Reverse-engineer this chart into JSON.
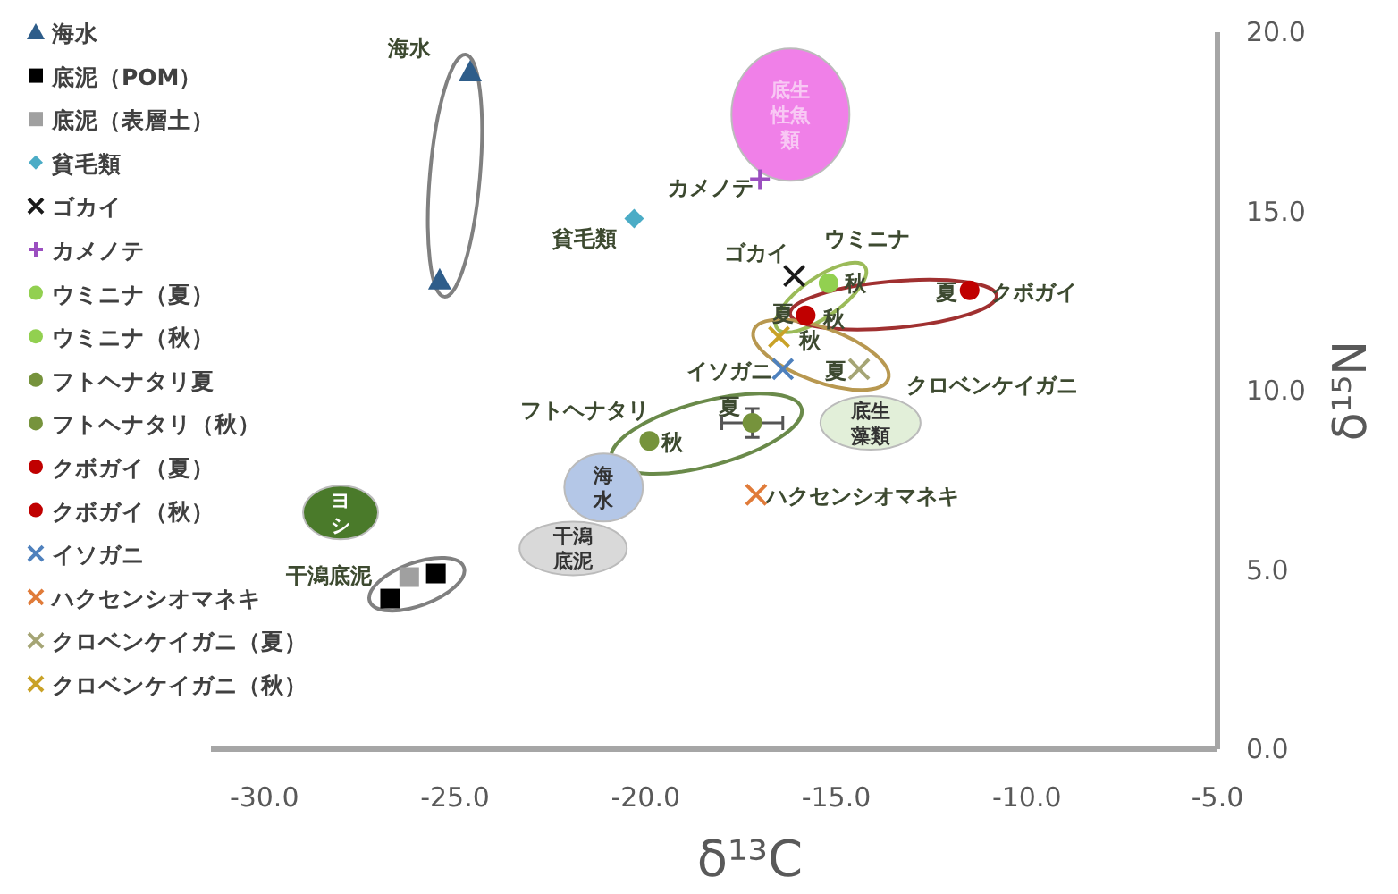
{
  "chart_data": {
    "type": "scatter",
    "xlabel": "δ¹³C",
    "ylabel": "δ¹⁵N",
    "xlim": [
      -31.4,
      -5
    ],
    "ylim": [
      0,
      20
    ],
    "xticks": [
      {
        "value": -30,
        "label": "-30.0"
      },
      {
        "value": -25,
        "label": "-25.0"
      },
      {
        "value": -20,
        "label": "-20.0"
      },
      {
        "value": -15,
        "label": "-15.0"
      },
      {
        "value": -10,
        "label": "-10.0"
      },
      {
        "value": -5,
        "label": "-5.0"
      }
    ],
    "yticks": [
      {
        "value": 0,
        "label": "0.0"
      },
      {
        "value": 5,
        "label": "5.0"
      },
      {
        "value": 10,
        "label": "10.0"
      },
      {
        "value": 15,
        "label": "15.0"
      },
      {
        "value": 20,
        "label": "20.0"
      }
    ],
    "grid": false,
    "legend": "left",
    "series": [
      {
        "name": "海水",
        "color": "#2e5d8a",
        "marker": "triangle",
        "x": [
          -24.6,
          -25.4
        ],
        "values": [
          18.9,
          13.1
        ]
      },
      {
        "name": "底泥（POM）",
        "color": "#000000",
        "marker": "square",
        "x": [
          -25.5,
          -26.7
        ],
        "values": [
          4.9,
          4.2
        ]
      },
      {
        "name": "底泥（表層土）",
        "color": "#a0a0a0",
        "marker": "square",
        "x": [
          -26.2
        ],
        "values": [
          4.8
        ]
      },
      {
        "name": "貧毛類",
        "color": "#4bacc6",
        "marker": "diamond",
        "x": [
          -20.3
        ],
        "values": [
          14.8
        ]
      },
      {
        "name": "ゴカイ",
        "color": "#1a1a1a",
        "marker": "cross",
        "x": [
          -16.1
        ],
        "values": [
          13.2
        ]
      },
      {
        "name": "カメノテ",
        "color": "#9b4fc0",
        "marker": "plus",
        "x": [
          -17.0
        ],
        "values": [
          15.9
        ]
      },
      {
        "name": "ウミニナ（夏）",
        "color": "#92d050",
        "marker": "circle",
        "x": [
          null
        ],
        "values": [
          null
        ]
      },
      {
        "name": "ウミニナ（秋）",
        "color": "#92d050",
        "marker": "circle",
        "x": [
          -15.2
        ],
        "values": [
          13.0
        ]
      },
      {
        "name": "フトヘナタリ夏",
        "color": "#76933c",
        "marker": "circle",
        "x": [
          -17.2
        ],
        "values": [
          9.1
        ],
        "errors": [
          0.4
        ],
        "xerrors": [
          0.8
        ]
      },
      {
        "name": "フトヘナタリ（秋）",
        "color": "#76933c",
        "marker": "circle",
        "x": [
          -19.9
        ],
        "values": [
          8.6
        ]
      },
      {
        "name": "クボガイ（夏）",
        "color": "#c00000",
        "marker": "circle",
        "x": [
          -11.5
        ],
        "values": [
          12.8
        ]
      },
      {
        "name": "クボガイ（秋）",
        "color": "#c00000",
        "marker": "circle",
        "x": [
          -15.8
        ],
        "values": [
          12.1
        ]
      },
      {
        "name": "イソガニ",
        "color": "#4f81bd",
        "marker": "cross",
        "x": [
          -16.4
        ],
        "values": [
          10.6
        ]
      },
      {
        "name": "ハクセンシオマネキ",
        "color": "#e07b39",
        "marker": "cross",
        "x": [
          -17.1
        ],
        "values": [
          7.1
        ]
      },
      {
        "name": "クロベンケイガニ（夏）",
        "color": "#a5a575",
        "marker": "cross",
        "x": [
          -14.4
        ],
        "values": [
          10.6
        ]
      },
      {
        "name": "クロベンケイガニ（秋）",
        "color": "#c9a227",
        "marker": "cross",
        "x": [
          -16.5
        ],
        "values": [
          11.5
        ]
      }
    ],
    "annotations": [
      "海水",
      "貧毛類",
      "カメノテ",
      "ゴカイ",
      "ウミニナ",
      "秋",
      "夏",
      "秋",
      "夏",
      "クボガイ",
      "秋",
      "夏",
      "クロベンケイガニ",
      "イソガニ",
      "フトヘナタリ",
      "夏",
      "秋",
      "ハクセンシオマネキ",
      "干潟底泥",
      "ヨシ",
      "海水",
      "干潟底泥",
      "底生藻類",
      "底生性魚類"
    ]
  }
}
